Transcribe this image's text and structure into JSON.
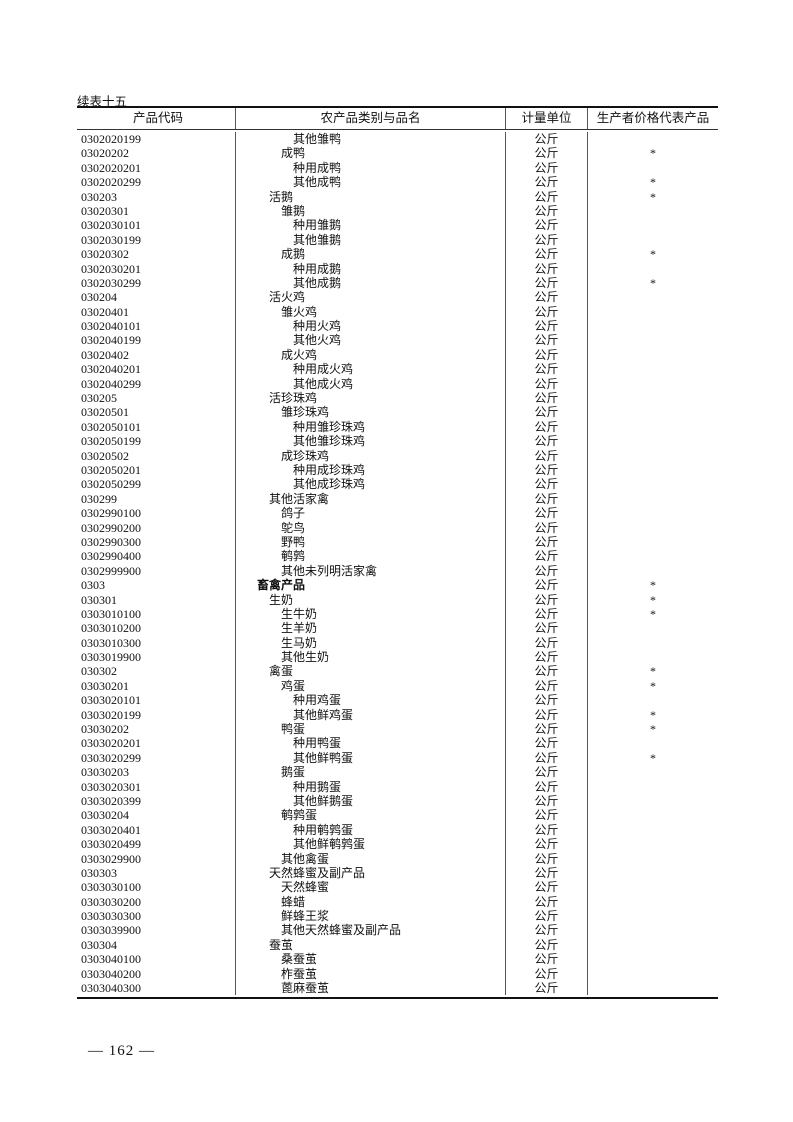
{
  "caption": "续表十五",
  "headers": [
    "产品代码",
    "农产品类别与品名",
    "计量单位",
    "生产者价格代表产品"
  ],
  "unit": "公斤",
  "mark": "*",
  "rows": [
    [
      "0302020199",
      "其他雏鸭",
      3,
      false
    ],
    [
      "03020202",
      "成鸭",
      2,
      true
    ],
    [
      "0302020201",
      "种用成鸭",
      3,
      false
    ],
    [
      "0302020299",
      "其他成鸭",
      3,
      true
    ],
    [
      "030203",
      "活鹅",
      1,
      true
    ],
    [
      "03020301",
      "雏鹅",
      2,
      false
    ],
    [
      "0302030101",
      "种用雏鹅",
      3,
      false
    ],
    [
      "0302030199",
      "其他雏鹅",
      3,
      false
    ],
    [
      "03020302",
      "成鹅",
      2,
      true
    ],
    [
      "0302030201",
      "种用成鹅",
      3,
      false
    ],
    [
      "0302030299",
      "其他成鹅",
      3,
      true
    ],
    [
      "030204",
      "活火鸡",
      1,
      false
    ],
    [
      "03020401",
      "雏火鸡",
      2,
      false
    ],
    [
      "0302040101",
      "种用火鸡",
      3,
      false
    ],
    [
      "0302040199",
      "其他火鸡",
      3,
      false
    ],
    [
      "03020402",
      "成火鸡",
      2,
      false
    ],
    [
      "0302040201",
      "种用成火鸡",
      3,
      false
    ],
    [
      "0302040299",
      "其他成火鸡",
      3,
      false
    ],
    [
      "030205",
      "活珍珠鸡",
      1,
      false
    ],
    [
      "03020501",
      "雏珍珠鸡",
      2,
      false
    ],
    [
      "0302050101",
      "种用雏珍珠鸡",
      3,
      false
    ],
    [
      "0302050199",
      "其他雏珍珠鸡",
      3,
      false
    ],
    [
      "03020502",
      "成珍珠鸡",
      2,
      false
    ],
    [
      "0302050201",
      "种用成珍珠鸡",
      3,
      false
    ],
    [
      "0302050299",
      "其他成珍珠鸡",
      3,
      false
    ],
    [
      "030299",
      "其他活家禽",
      1,
      false
    ],
    [
      "0302990100",
      "鸽子",
      2,
      false
    ],
    [
      "0302990200",
      "鸵鸟",
      2,
      false
    ],
    [
      "0302990300",
      "野鸭",
      2,
      false
    ],
    [
      "0302990400",
      "鹌鹑",
      2,
      false
    ],
    [
      "0302999900",
      "其他未列明活家禽",
      2,
      false
    ],
    [
      "0303",
      "畜禽产品",
      0,
      true
    ],
    [
      "030301",
      "生奶",
      1,
      true
    ],
    [
      "0303010100",
      "生牛奶",
      2,
      true
    ],
    [
      "0303010200",
      "生羊奶",
      2,
      false
    ],
    [
      "0303010300",
      "生马奶",
      2,
      false
    ],
    [
      "0303019900",
      "其他生奶",
      2,
      false
    ],
    [
      "030302",
      "禽蛋",
      1,
      true
    ],
    [
      "03030201",
      "鸡蛋",
      2,
      true
    ],
    [
      "0303020101",
      "种用鸡蛋",
      3,
      false
    ],
    [
      "0303020199",
      "其他鲜鸡蛋",
      3,
      true
    ],
    [
      "03030202",
      "鸭蛋",
      2,
      true
    ],
    [
      "0303020201",
      "种用鸭蛋",
      3,
      false
    ],
    [
      "0303020299",
      "其他鲜鸭蛋",
      3,
      true
    ],
    [
      "03030203",
      "鹅蛋",
      2,
      false
    ],
    [
      "0303020301",
      "种用鹅蛋",
      3,
      false
    ],
    [
      "0303020399",
      "其他鲜鹅蛋",
      3,
      false
    ],
    [
      "03030204",
      "鹌鹑蛋",
      2,
      false
    ],
    [
      "0303020401",
      "种用鹌鹑蛋",
      3,
      false
    ],
    [
      "0303020499",
      "其他鲜鹌鹑蛋",
      3,
      false
    ],
    [
      "0303029900",
      "其他禽蛋",
      2,
      false
    ],
    [
      "030303",
      "天然蜂蜜及副产品",
      1,
      false
    ],
    [
      "0303030100",
      "天然蜂蜜",
      2,
      false
    ],
    [
      "0303030200",
      "蜂蜡",
      2,
      false
    ],
    [
      "0303030300",
      "鲜蜂王浆",
      2,
      false
    ],
    [
      "0303039900",
      "其他天然蜂蜜及副产品",
      2,
      false
    ],
    [
      "030304",
      "蚕茧",
      1,
      false
    ],
    [
      "0303040100",
      "桑蚕茧",
      2,
      false
    ],
    [
      "0303040200",
      "柞蚕茧",
      2,
      false
    ],
    [
      "0303040300",
      "蓖麻蚕茧",
      2,
      false
    ]
  ],
  "page_number": "— 162 —"
}
